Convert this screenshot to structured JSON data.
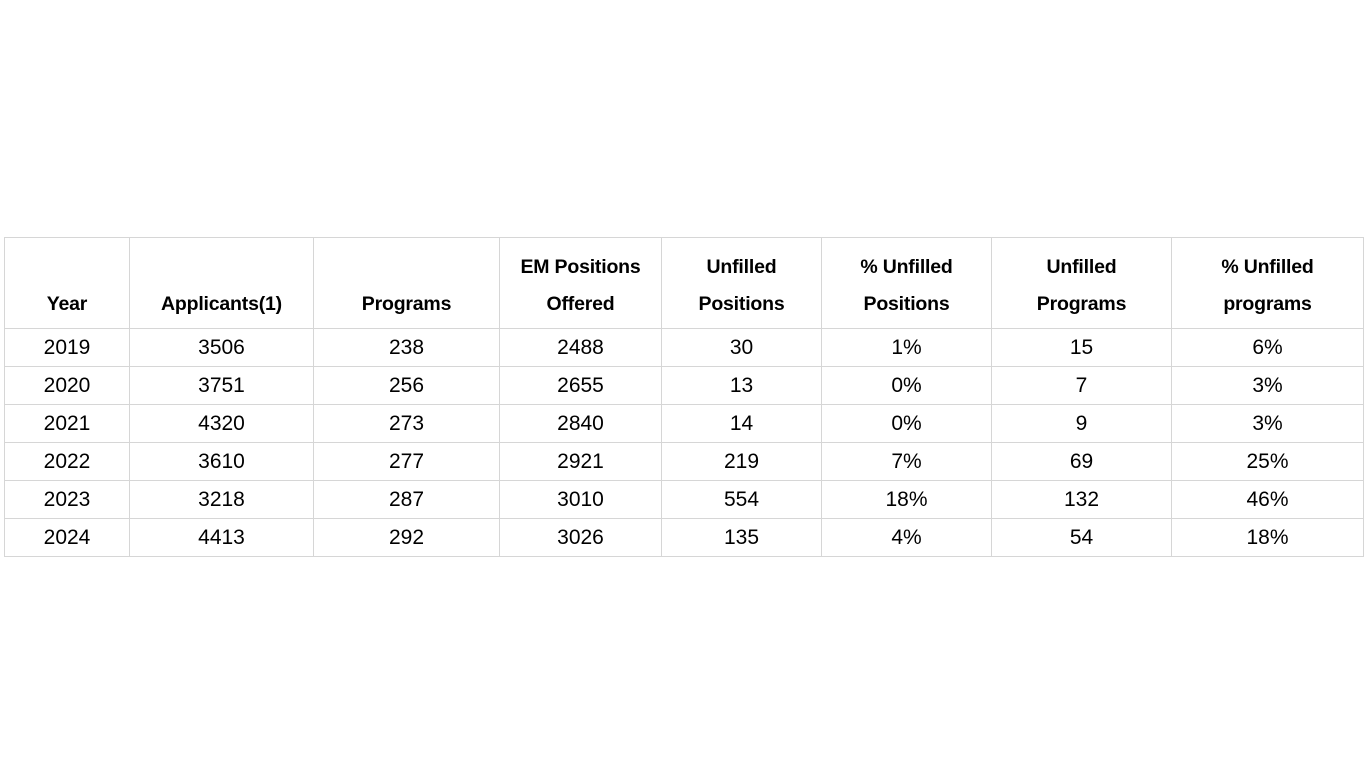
{
  "page": {
    "background_color": "#ffffff",
    "text_color": "#000000",
    "grid_border_color": "#d6d6d6"
  },
  "table": {
    "headers": [
      "Year",
      "Applicants(1)",
      "Programs",
      "EM Positions\nOffered",
      "Unfilled\nPositions",
      "% Unfilled\nPositions",
      "Unfilled\nPrograms",
      "% Unfilled\nprograms"
    ],
    "rows": [
      [
        "2019",
        "3506",
        "238",
        "2488",
        "30",
        "1%",
        "15",
        "6%"
      ],
      [
        "2020",
        "3751",
        "256",
        "2655",
        "13",
        "0%",
        "7",
        "3%"
      ],
      [
        "2021",
        "4320",
        "273",
        "2840",
        "14",
        "0%",
        "9",
        "3%"
      ],
      [
        "2022",
        "3610",
        "277",
        "2921",
        "219",
        "7%",
        "69",
        "25%"
      ],
      [
        "2023",
        "3218",
        "287",
        "3010",
        "554",
        "18%",
        "132",
        "46%"
      ],
      [
        "2024",
        "4413",
        "292",
        "3026",
        "135",
        "4%",
        "54",
        "18%"
      ]
    ]
  },
  "chart_data": {
    "type": "table",
    "title": "",
    "columns": [
      "Year",
      "Applicants(1)",
      "Programs",
      "EM Positions Offered",
      "Unfilled Positions",
      "% Unfilled Positions",
      "Unfilled Programs",
      "% Unfilled programs"
    ],
    "rows": [
      {
        "year": 2019,
        "applicants": 3506,
        "programs": 238,
        "em_positions_offered": 2488,
        "unfilled_positions": 30,
        "pct_unfilled_positions": "1%",
        "unfilled_programs": 15,
        "pct_unfilled_programs": "6%"
      },
      {
        "year": 2020,
        "applicants": 3751,
        "programs": 256,
        "em_positions_offered": 2655,
        "unfilled_positions": 13,
        "pct_unfilled_positions": "0%",
        "unfilled_programs": 7,
        "pct_unfilled_programs": "3%"
      },
      {
        "year": 2021,
        "applicants": 4320,
        "programs": 273,
        "em_positions_offered": 2840,
        "unfilled_positions": 14,
        "pct_unfilled_positions": "0%",
        "unfilled_programs": 9,
        "pct_unfilled_programs": "3%"
      },
      {
        "year": 2022,
        "applicants": 3610,
        "programs": 277,
        "em_positions_offered": 2921,
        "unfilled_positions": 219,
        "pct_unfilled_positions": "7%",
        "unfilled_programs": 69,
        "pct_unfilled_programs": "25%"
      },
      {
        "year": 2023,
        "applicants": 3218,
        "programs": 287,
        "em_positions_offered": 3010,
        "unfilled_positions": 554,
        "pct_unfilled_positions": "18%",
        "unfilled_programs": 132,
        "pct_unfilled_programs": "46%"
      },
      {
        "year": 2024,
        "applicants": 4413,
        "programs": 292,
        "em_positions_offered": 3026,
        "unfilled_positions": 135,
        "pct_unfilled_positions": "4%",
        "unfilled_programs": 54,
        "pct_unfilled_programs": "18%"
      }
    ],
    "layout": {
      "header_rows": 1,
      "grid": true,
      "header_bold": true,
      "cell_alignment": "center",
      "header_vertical_alignment": "bottom"
    }
  }
}
